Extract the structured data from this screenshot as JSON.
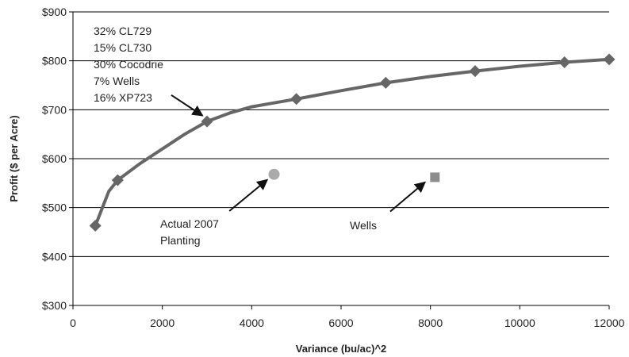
{
  "chart_data": {
    "type": "line",
    "title": "",
    "xlabel": "Variance (bu/ac)^2",
    "ylabel": "Profit ($ per Acre)",
    "xlim": [
      0,
      12000
    ],
    "ylim": [
      300,
      900
    ],
    "x_ticks": [
      0,
      2000,
      4000,
      6000,
      8000,
      10000,
      12000
    ],
    "x_tick_labels": [
      "0",
      "2000",
      "4000",
      "6000",
      "8000",
      "10000",
      "12000"
    ],
    "y_ticks": [
      300,
      400,
      500,
      600,
      700,
      800,
      900
    ],
    "y_tick_labels": [
      "$300",
      "$400",
      "$500",
      "$600",
      "$700",
      "$800",
      "$900"
    ],
    "grid": "horizontal",
    "legend": "none",
    "series": [
      {
        "name": "",
        "kind": "line",
        "marker": "diamond",
        "color": "#666666",
        "curve": [
          {
            "x": 500,
            "y": 463
          },
          {
            "x": 800,
            "y": 533
          },
          {
            "x": 1000,
            "y": 556
          },
          {
            "x": 1500,
            "y": 590
          },
          {
            "x": 2000,
            "y": 620
          },
          {
            "x": 2500,
            "y": 650
          },
          {
            "x": 3000,
            "y": 676
          },
          {
            "x": 3500,
            "y": 693
          },
          {
            "x": 4000,
            "y": 706
          },
          {
            "x": 4500,
            "y": 714
          },
          {
            "x": 5000,
            "y": 722
          },
          {
            "x": 6000,
            "y": 739
          },
          {
            "x": 7000,
            "y": 755
          },
          {
            "x": 8000,
            "y": 768
          },
          {
            "x": 9000,
            "y": 779
          },
          {
            "x": 10000,
            "y": 789
          },
          {
            "x": 11000,
            "y": 797
          },
          {
            "x": 12000,
            "y": 803
          }
        ],
        "points": [
          {
            "x": 500,
            "y": 463
          },
          {
            "x": 1000,
            "y": 556
          },
          {
            "x": 3000,
            "y": 676
          },
          {
            "x": 5000,
            "y": 722
          },
          {
            "x": 7000,
            "y": 755
          },
          {
            "x": 9000,
            "y": 779
          },
          {
            "x": 11000,
            "y": 797
          },
          {
            "x": 12000,
            "y": 803
          }
        ]
      },
      {
        "name": "",
        "kind": "point",
        "marker": "circle",
        "color": "#aaaaaa",
        "points": [
          {
            "x": 4500,
            "y": 568
          }
        ]
      },
      {
        "name": "",
        "kind": "point",
        "marker": "square",
        "color": "#8c8c8c",
        "points": [
          {
            "x": 8100,
            "y": 562
          }
        ]
      }
    ],
    "annotations": [
      {
        "lines": [
          "32% CL729",
          "15% CL730",
          "30% Cocodrie",
          "7% Wells",
          "16% XP723"
        ],
        "arrow_from": {
          "x": 2200,
          "y": 730
        },
        "arrow_to": {
          "x": 2900,
          "y": 688
        }
      },
      {
        "lines": [
          "Actual 2007",
          "Planting"
        ],
        "arrow_from": {
          "x": 3500,
          "y": 493
        },
        "arrow_to": {
          "x": 4350,
          "y": 557
        }
      },
      {
        "lines": [
          "Wells"
        ],
        "arrow_from": {
          "x": 7100,
          "y": 492
        },
        "arrow_to": {
          "x": 7880,
          "y": 552
        }
      }
    ]
  }
}
